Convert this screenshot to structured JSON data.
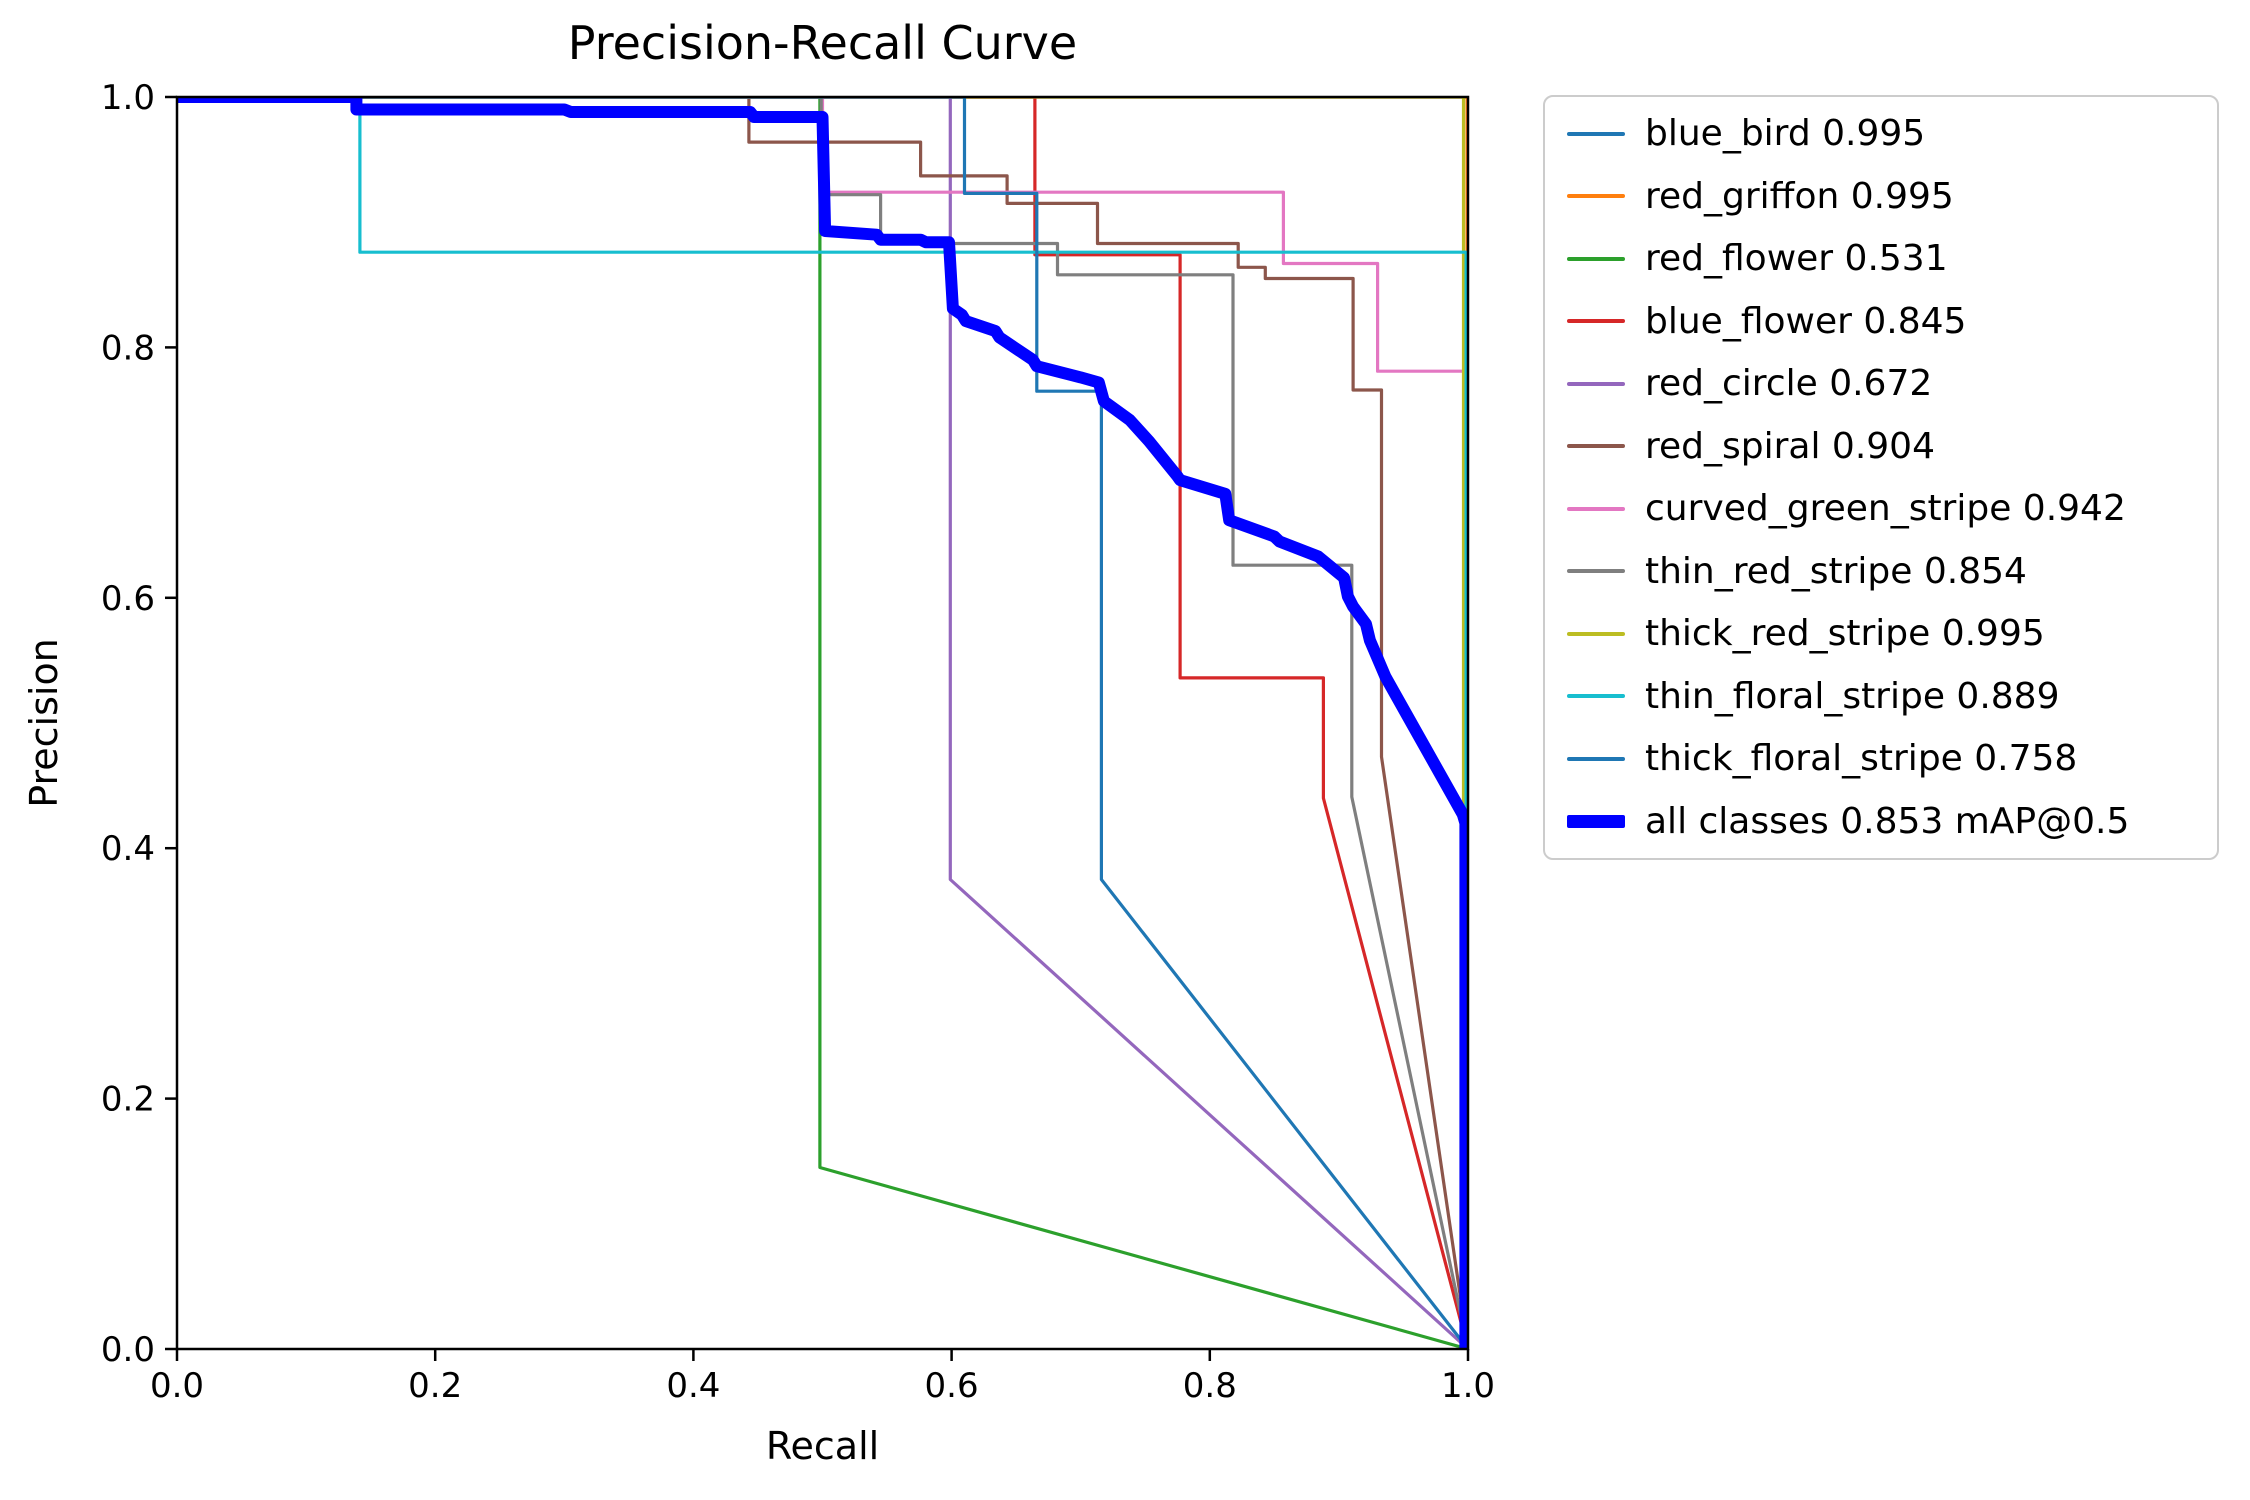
{
  "title": "Precision-Recall Curve",
  "chart_data": {
    "type": "line",
    "title": "Precision-Recall Curve",
    "xlabel": "Recall",
    "ylabel": "Precision",
    "xlim": [
      0.0,
      1.0
    ],
    "ylim": [
      0.0,
      1.0
    ],
    "x_ticks": [
      "0.0",
      "0.2",
      "0.4",
      "0.6",
      "0.8",
      "1.0"
    ],
    "y_ticks": [
      "0.0",
      "0.2",
      "0.4",
      "0.6",
      "0.8",
      "1.0"
    ],
    "grid": false,
    "legend_position": "outside-upper-right",
    "axis_color": "#000000",
    "background_color": "#ffffff",
    "series": [
      {
        "name": "blue_bird",
        "ap": 0.995,
        "label": "blue_bird 0.995",
        "color": "#1f77b4",
        "thick": false,
        "points": [
          [
            0,
            1
          ],
          [
            0.9995,
            1
          ],
          [
            0.9995,
            0
          ]
        ]
      },
      {
        "name": "red_griffon",
        "ap": 0.995,
        "label": "red_griffon 0.995",
        "color": "#ff7f0e",
        "thick": false,
        "points": [
          [
            0,
            1
          ],
          [
            0.9993,
            1
          ],
          [
            0.9993,
            0
          ]
        ]
      },
      {
        "name": "red_flower",
        "ap": 0.531,
        "label": "red_flower 0.531",
        "color": "#2ca02c",
        "thick": false,
        "points": [
          [
            0,
            1
          ],
          [
            0.498,
            1
          ],
          [
            0.498,
            0.145
          ],
          [
            1,
            0
          ]
        ]
      },
      {
        "name": "blue_flower",
        "ap": 0.845,
        "label": "blue_flower 0.845",
        "color": "#d62728",
        "thick": false,
        "points": [
          [
            0,
            1
          ],
          [
            0.6645,
            1
          ],
          [
            0.6645,
            0.874
          ],
          [
            0.777,
            0.874
          ],
          [
            0.777,
            0.536
          ],
          [
            0.888,
            0.536
          ],
          [
            0.888,
            0.44
          ],
          [
            1,
            0
          ]
        ]
      },
      {
        "name": "red_circle",
        "ap": 0.672,
        "label": "red_circle 0.672",
        "color": "#9467bd",
        "thick": false,
        "points": [
          [
            0,
            1
          ],
          [
            0.599,
            1
          ],
          [
            0.599,
            0.375
          ],
          [
            1,
            0
          ]
        ]
      },
      {
        "name": "red_spiral",
        "ap": 0.904,
        "label": "red_spiral 0.904",
        "color": "#8c564b",
        "thick": false,
        "points": [
          [
            0,
            1
          ],
          [
            0.443,
            1
          ],
          [
            0.443,
            0.964
          ],
          [
            0.576,
            0.964
          ],
          [
            0.576,
            0.937
          ],
          [
            0.643,
            0.937
          ],
          [
            0.643,
            0.915
          ],
          [
            0.713,
            0.915
          ],
          [
            0.713,
            0.883
          ],
          [
            0.822,
            0.883
          ],
          [
            0.822,
            0.864
          ],
          [
            0.843,
            0.864
          ],
          [
            0.843,
            0.855
          ],
          [
            0.911,
            0.855
          ],
          [
            0.911,
            0.766
          ],
          [
            0.933,
            0.766
          ],
          [
            0.933,
            0.473
          ],
          [
            1,
            0
          ]
        ]
      },
      {
        "name": "curved_green_stripe",
        "ap": 0.942,
        "label": "curved_green_stripe 0.942",
        "color": "#e377c2",
        "thick": false,
        "points": [
          [
            0,
            1
          ],
          [
            0.5,
            1
          ],
          [
            0.5,
            0.924
          ],
          [
            0.857,
            0.924
          ],
          [
            0.857,
            0.867
          ],
          [
            0.93,
            0.867
          ],
          [
            0.93,
            0.781
          ],
          [
            0.9985,
            0.781
          ],
          [
            0.9985,
            0
          ]
        ]
      },
      {
        "name": "thin_red_stripe",
        "ap": 0.854,
        "label": "thin_red_stripe 0.854",
        "color": "#7f7f7f",
        "thick": false,
        "points": [
          [
            0,
            1
          ],
          [
            0.499,
            1
          ],
          [
            0.499,
            0.922
          ],
          [
            0.545,
            0.922
          ],
          [
            0.545,
            0.883
          ],
          [
            0.682,
            0.883
          ],
          [
            0.682,
            0.858
          ],
          [
            0.818,
            0.858
          ],
          [
            0.818,
            0.626
          ],
          [
            0.91,
            0.626
          ],
          [
            0.91,
            0.441
          ],
          [
            1,
            0
          ]
        ]
      },
      {
        "name": "thick_red_stripe",
        "ap": 0.995,
        "label": "thick_red_stripe 0.995",
        "color": "#bcbd22",
        "thick": false,
        "points": [
          [
            0,
            1
          ],
          [
            0.9965,
            1
          ],
          [
            0.9965,
            0
          ]
        ]
      },
      {
        "name": "thin_floral_stripe",
        "ap": 0.889,
        "label": "thin_floral_stripe 0.889",
        "color": "#17becf",
        "thick": false,
        "points": [
          [
            0,
            1
          ],
          [
            0.1417,
            1
          ],
          [
            0.1417,
            0.876
          ],
          [
            0.9985,
            0.876
          ],
          [
            0.9985,
            0
          ]
        ]
      },
      {
        "name": "thick_floral_stripe",
        "ap": 0.758,
        "label": "thick_floral_stripe 0.758",
        "color": "#1f77b4",
        "thick": false,
        "points": [
          [
            0,
            1
          ],
          [
            0.61,
            1
          ],
          [
            0.61,
            0.923
          ],
          [
            0.666,
            0.923
          ],
          [
            0.666,
            0.765
          ],
          [
            0.716,
            0.765
          ],
          [
            0.716,
            0.375
          ],
          [
            1,
            0
          ]
        ]
      },
      {
        "name": "all_classes",
        "ap": 0.853,
        "label": "all classes 0.853 mAP@0.5",
        "color": "#0000ff",
        "thick": true,
        "points": [
          [
            0,
            1
          ],
          [
            0.139,
            1
          ],
          [
            0.139,
            0.99
          ],
          [
            0.3,
            0.99
          ],
          [
            0.305,
            0.988
          ],
          [
            0.444,
            0.988
          ],
          [
            0.447,
            0.984
          ],
          [
            0.5,
            0.984
          ],
          [
            0.502,
            0.893
          ],
          [
            0.542,
            0.89
          ],
          [
            0.545,
            0.886
          ],
          [
            0.576,
            0.886
          ],
          [
            0.58,
            0.884
          ],
          [
            0.598,
            0.884
          ],
          [
            0.601,
            0.831
          ],
          [
            0.608,
            0.826
          ],
          [
            0.611,
            0.821
          ],
          [
            0.634,
            0.813
          ],
          [
            0.637,
            0.808
          ],
          [
            0.663,
            0.79
          ],
          [
            0.666,
            0.785
          ],
          [
            0.7,
            0.776
          ],
          [
            0.714,
            0.772
          ],
          [
            0.718,
            0.757
          ],
          [
            0.738,
            0.742
          ],
          [
            0.753,
            0.725
          ],
          [
            0.775,
            0.697
          ],
          [
            0.777,
            0.694
          ],
          [
            0.812,
            0.683
          ],
          [
            0.815,
            0.662
          ],
          [
            0.85,
            0.649
          ],
          [
            0.854,
            0.645
          ],
          [
            0.884,
            0.633
          ],
          [
            0.904,
            0.616
          ],
          [
            0.907,
            0.601
          ],
          [
            0.911,
            0.593
          ],
          [
            0.921,
            0.579
          ],
          [
            0.924,
            0.566
          ],
          [
            0.936,
            0.537
          ],
          [
            0.996,
            0.427
          ],
          [
            0.998,
            0.42
          ],
          [
            0.998,
            0
          ]
        ]
      }
    ]
  }
}
